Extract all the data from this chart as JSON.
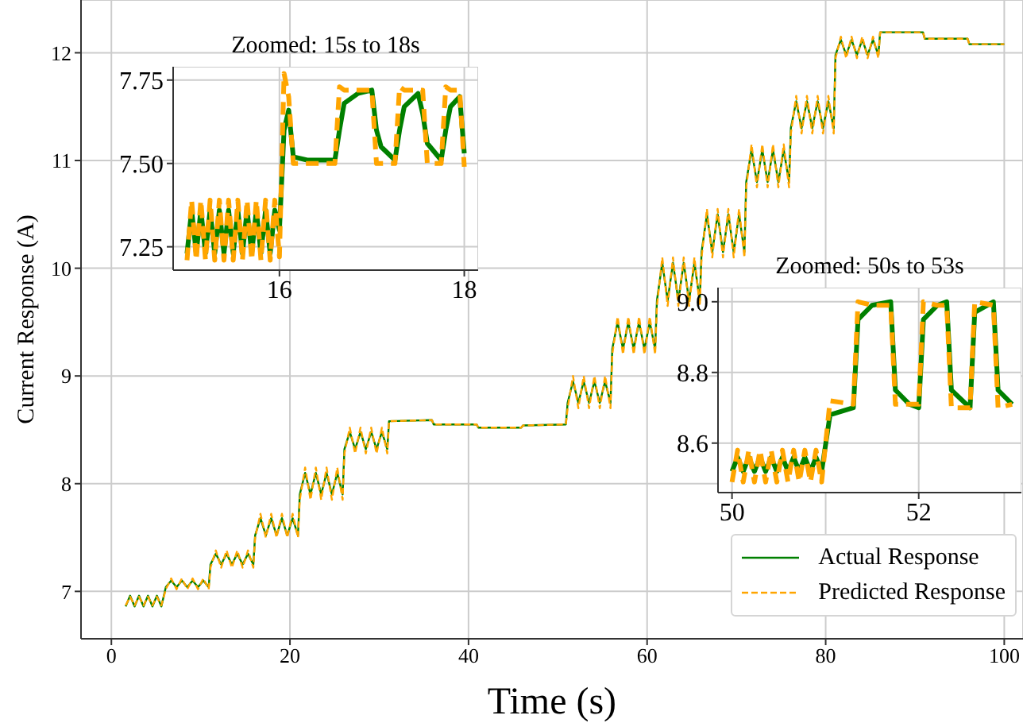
{
  "chart_data": [
    {
      "type": "line",
      "xlabel": "Time (s)",
      "ylabel": "Current Response (A)",
      "xlim": [
        -3.4,
        102.1
      ],
      "ylim": [
        6.56,
        12.49
      ],
      "xticks": [
        0,
        20,
        40,
        60,
        80,
        100
      ],
      "yticks": [
        7,
        8,
        9,
        10,
        11,
        12
      ],
      "grid": true,
      "legend": "bottom right",
      "x": [
        1.6,
        2.1,
        2.6,
        3.1,
        3.6,
        4.1,
        4.6,
        5.1,
        5.6,
        6.1,
        6.7,
        7.3,
        7.9,
        8.5,
        9.1,
        9.7,
        10.3,
        10.9,
        11.1,
        11.7,
        12.3,
        12.9,
        13.5,
        14.1,
        14.7,
        15.3,
        15.9,
        16.1,
        16.7,
        17.3,
        17.9,
        18.5,
        19.1,
        19.7,
        20.3,
        20.9,
        21.1,
        21.7,
        22.3,
        22.9,
        23.5,
        24.1,
        24.7,
        25.3,
        25.9,
        26.1,
        26.7,
        27.3,
        27.9,
        28.5,
        29.1,
        29.7,
        30.3,
        30.9,
        31.1,
        35.9,
        36.1,
        40.9,
        41.1,
        45.9,
        46.1,
        50.9,
        51.1,
        51.7,
        52.3,
        52.9,
        53.5,
        54.1,
        54.7,
        55.3,
        55.9,
        56.1,
        56.7,
        57.3,
        57.9,
        58.5,
        59.1,
        59.7,
        60.3,
        60.9,
        61.1,
        61.7,
        62.3,
        62.9,
        63.5,
        64.1,
        64.7,
        65.3,
        65.9,
        66.1,
        66.7,
        67.3,
        67.9,
        68.5,
        69.1,
        69.7,
        70.3,
        70.9,
        71.1,
        71.7,
        72.3,
        72.9,
        73.5,
        74.1,
        74.7,
        75.3,
        75.9,
        76.1,
        76.7,
        77.3,
        77.9,
        78.5,
        79.1,
        79.7,
        80.3,
        80.9,
        81.1,
        81.7,
        82.3,
        82.9,
        83.5,
        84.1,
        84.7,
        85.3,
        85.9,
        86.1,
        90.9,
        91.1,
        95.9,
        96.1,
        100
      ],
      "series": [
        {
          "name": "Actual Response",
          "color": "#008000",
          "line_style": "solid",
          "values": [
            6.86,
            6.96,
            6.86,
            6.96,
            6.86,
            6.96,
            6.86,
            6.96,
            6.86,
            7.04,
            7.1,
            7.04,
            7.1,
            7.04,
            7.1,
            7.04,
            7.1,
            7.04,
            7.25,
            7.35,
            7.25,
            7.35,
            7.25,
            7.35,
            7.25,
            7.35,
            7.25,
            7.52,
            7.68,
            7.52,
            7.68,
            7.52,
            7.68,
            7.52,
            7.68,
            7.52,
            7.9,
            8.1,
            7.9,
            8.1,
            7.9,
            8.1,
            7.9,
            8.1,
            7.9,
            8.32,
            8.48,
            8.32,
            8.48,
            8.32,
            8.48,
            8.32,
            8.48,
            8.32,
            8.58,
            8.59,
            8.55,
            8.55,
            8.52,
            8.52,
            8.54,
            8.55,
            8.75,
            8.95,
            8.75,
            8.95,
            8.75,
            8.95,
            8.75,
            8.95,
            8.75,
            9.25,
            9.5,
            9.25,
            9.5,
            9.25,
            9.5,
            9.25,
            9.5,
            9.25,
            9.7,
            10.05,
            9.7,
            10.05,
            9.7,
            10.05,
            9.7,
            10.05,
            9.7,
            10.15,
            10.5,
            10.15,
            10.5,
            10.15,
            10.5,
            10.15,
            10.5,
            10.15,
            10.8,
            11.1,
            10.8,
            11.1,
            10.8,
            11.1,
            10.8,
            11.1,
            10.8,
            11.3,
            11.55,
            11.3,
            11.55,
            11.3,
            11.55,
            11.3,
            11.55,
            11.3,
            11.98,
            12.12,
            11.98,
            12.12,
            11.98,
            12.12,
            11.98,
            12.12,
            11.98,
            12.19,
            12.19,
            12.13,
            12.13,
            12.08,
            12.08
          ]
        },
        {
          "name": "Predicted Response",
          "color": "#ffa500",
          "line_style": "dashed",
          "values": [
            6.87,
            6.95,
            6.87,
            6.95,
            6.87,
            6.95,
            6.87,
            6.95,
            6.87,
            7.02,
            7.12,
            7.02,
            7.12,
            7.02,
            7.12,
            7.02,
            7.12,
            7.02,
            7.22,
            7.38,
            7.22,
            7.38,
            7.22,
            7.38,
            7.22,
            7.38,
            7.22,
            7.5,
            7.72,
            7.5,
            7.72,
            7.5,
            7.72,
            7.5,
            7.72,
            7.5,
            7.85,
            8.15,
            7.85,
            8.15,
            7.85,
            8.15,
            7.85,
            8.15,
            7.85,
            8.28,
            8.52,
            8.28,
            8.52,
            8.28,
            8.52,
            8.28,
            8.52,
            8.28,
            8.58,
            8.59,
            8.55,
            8.55,
            8.52,
            8.52,
            8.54,
            8.55,
            8.7,
            9.0,
            8.7,
            9.0,
            8.7,
            9.0,
            8.7,
            9.0,
            8.7,
            9.2,
            9.55,
            9.2,
            9.55,
            9.2,
            9.55,
            9.2,
            9.55,
            9.2,
            9.65,
            10.1,
            9.65,
            10.1,
            9.65,
            10.1,
            9.65,
            10.1,
            9.65,
            10.1,
            10.55,
            10.1,
            10.55,
            10.1,
            10.55,
            10.1,
            10.55,
            10.1,
            10.75,
            11.15,
            10.75,
            11.15,
            10.75,
            11.15,
            10.75,
            11.15,
            10.75,
            11.25,
            11.6,
            11.25,
            11.6,
            11.25,
            11.6,
            11.25,
            11.6,
            11.25,
            11.95,
            12.15,
            11.95,
            12.15,
            11.95,
            12.15,
            11.95,
            12.15,
            11.95,
            12.19,
            12.19,
            12.13,
            12.13,
            12.08,
            12.08
          ]
        }
      ]
    },
    {
      "type": "line",
      "title": "Zoomed: 15s to 18s",
      "xlim": [
        14.85,
        18.15
      ],
      "ylim": [
        7.18,
        7.79
      ],
      "xticks": [
        16,
        18
      ],
      "yticks": [
        7.25,
        {
          "value": 7.5,
          "label": "7.50"
        },
        7.75
      ],
      "grid": true,
      "x": [
        15.0,
        15.05,
        15.1,
        15.15,
        15.2,
        15.25,
        15.3,
        15.35,
        15.4,
        15.45,
        15.5,
        15.55,
        15.6,
        15.65,
        15.7,
        15.75,
        15.8,
        15.85,
        15.9,
        15.95,
        16.0,
        16.05,
        16.1,
        16.15,
        16.3,
        16.6,
        16.65,
        16.7,
        16.85,
        17.0,
        17.05,
        17.1,
        17.25,
        17.3,
        17.35,
        17.5,
        17.55,
        17.6,
        17.75,
        17.8,
        17.85,
        17.95,
        18.0
      ],
      "series": [
        {
          "color": "#008000",
          "line_style": "solid",
          "values": [
            7.23,
            7.36,
            7.23,
            7.36,
            7.23,
            7.36,
            7.23,
            7.36,
            7.23,
            7.36,
            7.23,
            7.36,
            7.23,
            7.36,
            7.23,
            7.36,
            7.23,
            7.36,
            7.23,
            7.36,
            7.3,
            7.6,
            7.66,
            7.52,
            7.51,
            7.51,
            7.6,
            7.68,
            7.71,
            7.72,
            7.6,
            7.55,
            7.51,
            7.6,
            7.67,
            7.71,
            7.65,
            7.56,
            7.51,
            7.6,
            7.67,
            7.7,
            7.53
          ]
        },
        {
          "color": "#ffa500",
          "line_style": "dashed",
          "values": [
            7.21,
            7.39,
            7.21,
            7.39,
            7.21,
            7.39,
            7.21,
            7.39,
            7.21,
            7.39,
            7.21,
            7.39,
            7.21,
            7.39,
            7.21,
            7.39,
            7.21,
            7.39,
            7.21,
            7.39,
            7.22,
            7.77,
            7.7,
            7.5,
            7.5,
            7.5,
            7.73,
            7.72,
            7.72,
            7.72,
            7.5,
            7.5,
            7.5,
            7.73,
            7.72,
            7.72,
            7.72,
            7.5,
            7.5,
            7.73,
            7.72,
            7.72,
            7.49
          ]
        }
      ]
    },
    {
      "type": "line",
      "title": "Zoomed: 50s to 53s",
      "xlim": [
        49.85,
        53.1
      ],
      "ylim": [
        8.46,
        9.04
      ],
      "xticks": [
        50,
        52
      ],
      "yticks": [
        8.6,
        8.8,
        {
          "value": 9,
          "label": "9.0"
        }
      ],
      "grid": true,
      "x": [
        50.0,
        50.06,
        50.12,
        50.18,
        50.24,
        50.3,
        50.36,
        50.42,
        50.48,
        50.54,
        50.6,
        50.66,
        50.72,
        50.78,
        50.84,
        50.9,
        50.96,
        51.05,
        51.3,
        51.35,
        51.5,
        51.7,
        51.75,
        51.9,
        52.0,
        52.05,
        52.2,
        52.3,
        52.35,
        52.55,
        52.6,
        52.8,
        52.85,
        53.0
      ],
      "series": [
        {
          "color": "#008000",
          "line_style": "solid",
          "values": [
            8.52,
            8.56,
            8.52,
            8.56,
            8.52,
            8.56,
            8.52,
            8.56,
            8.52,
            8.56,
            8.52,
            8.56,
            8.52,
            8.56,
            8.52,
            8.56,
            8.52,
            8.68,
            8.7,
            8.95,
            8.99,
            9.0,
            8.75,
            8.71,
            8.7,
            8.95,
            8.99,
            9.0,
            8.75,
            8.7,
            8.97,
            9.0,
            8.75,
            8.71
          ]
        },
        {
          "color": "#ffa500",
          "line_style": "dashed",
          "values": [
            8.49,
            8.58,
            8.49,
            8.58,
            8.49,
            8.58,
            8.49,
            8.58,
            8.49,
            8.58,
            8.49,
            8.58,
            8.49,
            8.58,
            8.49,
            8.58,
            8.49,
            8.72,
            8.71,
            9.0,
            8.99,
            8.99,
            8.71,
            8.71,
            8.71,
            9.0,
            8.99,
            8.99,
            8.7,
            8.7,
            9.0,
            8.99,
            8.7,
            8.71
          ]
        }
      ]
    }
  ]
}
